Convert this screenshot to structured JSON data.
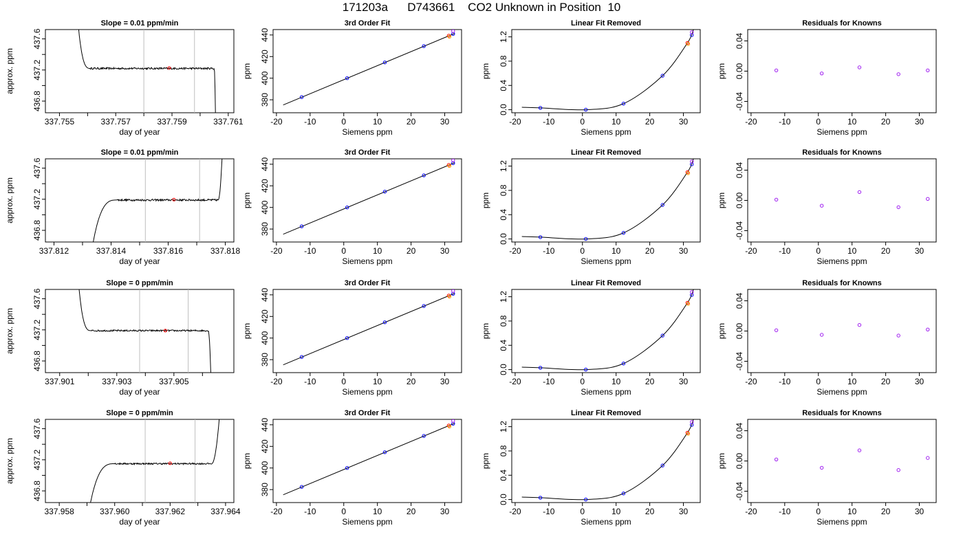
{
  "figure": {
    "title": "171203a      D743661    CO2 Unknown in Position  10"
  },
  "colors": {
    "trace": "#000000",
    "marker_vline": "#bebebe",
    "red_point": "#ff0000",
    "orange_point": "#ffa500",
    "blue_point": "#0000ff",
    "purple_point": "#a020f0"
  },
  "chart_data": [
    {
      "type": "line",
      "row": 0,
      "col": 0,
      "title": "Slope =  0.01  ppm/min",
      "xlabel": "day of year",
      "ylabel": "approx. ppm",
      "xlim": [
        337.7545,
        337.7612
      ],
      "ylim": [
        436.65,
        437.72
      ],
      "xticks": [
        337.755,
        337.756,
        337.757,
        337.758,
        337.759,
        337.76,
        337.761
      ],
      "xticklabels": [
        "337.755",
        "",
        "337.757",
        "",
        "337.759",
        "",
        "337.761"
      ],
      "yticks": [
        436.8,
        437.0,
        437.2,
        437.4,
        437.6
      ],
      "yticklabels": [
        "436.8",
        "",
        "437.2",
        "",
        "437.6"
      ],
      "vlines": [
        337.758,
        337.7598
      ],
      "trace": {
        "start": 337.75565,
        "plateau_start": 337.7561,
        "plateau_end": 337.7605,
        "end": 337.76055,
        "plateau": 437.22,
        "start_value": 437.85,
        "end_value": 436.55,
        "noise": 0.012
      },
      "mean_point": {
        "x": 337.7589,
        "y": 437.225
      }
    },
    {
      "type": "scatter",
      "row": 0,
      "col": 1,
      "title": "3rd Order Fit",
      "xlabel": "Siemens ppm",
      "ylabel": "ppm",
      "xlim": [
        -21,
        35
      ],
      "ylim": [
        368,
        445
      ],
      "xticks": [
        -20,
        -10,
        0,
        10,
        20,
        30
      ],
      "yticks": [
        380,
        400,
        420,
        440
      ],
      "fit_line": {
        "x": [
          -18,
          33
        ],
        "y": [
          375.2,
          441.5
        ]
      },
      "knowns": {
        "x": [
          -12.5,
          1,
          12.2,
          23.8,
          32.5
        ],
        "y": [
          382.5,
          400,
          414.6,
          429.7,
          441
        ]
      },
      "unknown": {
        "x": [
          31.2
        ],
        "y": [
          439.3
        ]
      }
    },
    {
      "type": "scatter",
      "row": 0,
      "col": 2,
      "title": "Linear Fit Removed",
      "xlabel": "Siemens ppm",
      "ylabel": "ppm",
      "xlim": [
        -21,
        35
      ],
      "ylim": [
        -0.05,
        1.32
      ],
      "xticks": [
        -20,
        -10,
        0,
        10,
        20,
        30
      ],
      "yticks": [
        0.0,
        0.4,
        0.8,
        1.2
      ],
      "fit_curve": {
        "x": [
          -18,
          -12.5,
          1,
          12.2,
          23.8,
          31.2,
          33
        ],
        "y": [
          0.04,
          0.03,
          0,
          0.1,
          0.56,
          1.1,
          1.32
        ]
      },
      "knowns": {
        "x": [
          -12.5,
          1,
          12.2,
          23.8,
          32.5
        ],
        "y": [
          0.03,
          0,
          0.1,
          0.56,
          1.23
        ]
      },
      "unknown": {
        "x": [
          31.2
        ],
        "y": [
          1.1
        ]
      }
    },
    {
      "type": "scatter",
      "row": 0,
      "col": 3,
      "title": "Residuals for Knowns",
      "xlabel": "Siemens ppm",
      "ylabel": "ppm",
      "xlim": [
        -21,
        35
      ],
      "ylim": [
        -0.055,
        0.055
      ],
      "xticks": [
        -20,
        -10,
        0,
        10,
        20,
        30
      ],
      "yticks": [
        -0.04,
        0.0,
        0.04
      ],
      "residuals": {
        "x": [
          -12.5,
          1,
          12.2,
          23.8,
          32.5
        ],
        "y": [
          0.001,
          -0.003,
          0.005,
          -0.004,
          0.001
        ]
      }
    },
    {
      "type": "line",
      "row": 1,
      "col": 0,
      "title": "Slope =  0.01  ppm/min",
      "xlabel": "day of year",
      "ylabel": "approx. ppm",
      "xlim": [
        337.8117,
        337.8183
      ],
      "ylim": [
        436.65,
        437.72
      ],
      "xticks": [
        337.812,
        337.813,
        337.814,
        337.815,
        337.816,
        337.817,
        337.818
      ],
      "xticklabels": [
        "337.812",
        "",
        "337.814",
        "",
        "337.816",
        "",
        "337.818"
      ],
      "yticks": [
        436.8,
        437.0,
        437.2,
        437.4,
        437.6
      ],
      "yticklabels": [
        "436.8",
        "",
        "437.2",
        "",
        "437.6"
      ],
      "vlines": [
        337.8152,
        337.8171
      ],
      "trace": {
        "start": 337.81335,
        "plateau_start": 337.8142,
        "plateau_end": 337.81775,
        "end": 337.8179,
        "plateau": 437.19,
        "start_value": 436.6,
        "end_value": 437.85,
        "noise": 0.012
      },
      "mean_point": {
        "x": 337.8162,
        "y": 437.195
      }
    },
    {
      "type": "scatter",
      "row": 1,
      "col": 1,
      "title": "3rd Order Fit",
      "xlabel": "Siemens ppm",
      "ylabel": "ppm",
      "xlim": [
        -21,
        35
      ],
      "ylim": [
        368,
        445
      ],
      "xticks": [
        -20,
        -10,
        0,
        10,
        20,
        30
      ],
      "yticks": [
        380,
        400,
        420,
        440
      ],
      "fit_line": {
        "x": [
          -18,
          33
        ],
        "y": [
          375.2,
          441.5
        ]
      },
      "knowns": {
        "x": [
          -12.5,
          1,
          12.2,
          23.8,
          32.5
        ],
        "y": [
          382.5,
          400,
          414.6,
          429.7,
          441
        ]
      },
      "unknown": {
        "x": [
          31.2
        ],
        "y": [
          439.3
        ]
      }
    },
    {
      "type": "scatter",
      "row": 1,
      "col": 2,
      "title": "Linear Fit Removed",
      "xlabel": "Siemens ppm",
      "ylabel": "ppm",
      "xlim": [
        -21,
        35
      ],
      "ylim": [
        -0.05,
        1.32
      ],
      "xticks": [
        -20,
        -10,
        0,
        10,
        20,
        30
      ],
      "yticks": [
        0.0,
        0.4,
        0.8,
        1.2
      ],
      "fit_curve": {
        "x": [
          -18,
          -12.5,
          1,
          12.2,
          23.8,
          31.2,
          33
        ],
        "y": [
          0.04,
          0.03,
          0,
          0.1,
          0.56,
          1.1,
          1.32
        ]
      },
      "knowns": {
        "x": [
          -12.5,
          1,
          12.2,
          23.8,
          32.5
        ],
        "y": [
          0.03,
          0,
          0.1,
          0.56,
          1.23
        ]
      },
      "unknown": {
        "x": [
          31.2
        ],
        "y": [
          1.1
        ]
      }
    },
    {
      "type": "scatter",
      "row": 1,
      "col": 3,
      "title": "Residuals for Knowns",
      "xlabel": "Siemens ppm",
      "ylabel": "ppm",
      "xlim": [
        -21,
        35
      ],
      "ylim": [
        -0.055,
        0.055
      ],
      "xticks": [
        -20,
        -10,
        0,
        10,
        20,
        30
      ],
      "yticks": [
        -0.04,
        0.0,
        0.04
      ],
      "residuals": {
        "x": [
          -12.5,
          1,
          12.2,
          23.8,
          32.5
        ],
        "y": [
          0.001,
          -0.007,
          0.011,
          -0.009,
          0.002
        ]
      }
    },
    {
      "type": "line",
      "row": 2,
      "col": 0,
      "title": "Slope =  0  ppm/min",
      "xlabel": "day of year",
      "ylabel": "approx. ppm",
      "xlim": [
        337.9005,
        337.9071
      ],
      "ylim": [
        436.65,
        437.72
      ],
      "xticks": [
        337.901,
        337.902,
        337.903,
        337.904,
        337.905,
        337.906
      ],
      "xticklabels": [
        "337.901",
        "",
        "337.903",
        "",
        "337.905",
        ""
      ],
      "yticks": [
        436.8,
        437.0,
        437.2,
        437.4,
        437.6
      ],
      "yticklabels": [
        "436.8",
        "",
        "437.2",
        "",
        "437.6"
      ],
      "vlines": [
        337.9038,
        337.9055
      ],
      "trace": {
        "start": 337.90165,
        "plateau_start": 337.9021,
        "plateau_end": 337.9062,
        "end": 337.9063,
        "plateau": 437.19,
        "start_value": 437.85,
        "end_value": 436.55,
        "noise": 0.01
      },
      "mean_point": {
        "x": 337.9047,
        "y": 437.19
      }
    },
    {
      "type": "scatter",
      "row": 2,
      "col": 1,
      "title": "3rd Order Fit",
      "xlabel": "Siemens ppm",
      "ylabel": "ppm",
      "xlim": [
        -21,
        35
      ],
      "ylim": [
        368,
        445
      ],
      "xticks": [
        -20,
        -10,
        0,
        10,
        20,
        30
      ],
      "yticks": [
        380,
        400,
        420,
        440
      ],
      "fit_line": {
        "x": [
          -18,
          33
        ],
        "y": [
          375.2,
          441.5
        ]
      },
      "knowns": {
        "x": [
          -12.5,
          1,
          12.2,
          23.8,
          32.5
        ],
        "y": [
          382.5,
          400,
          414.6,
          429.7,
          441
        ]
      },
      "unknown": {
        "x": [
          31.2
        ],
        "y": [
          439.3
        ]
      }
    },
    {
      "type": "scatter",
      "row": 2,
      "col": 2,
      "title": "Linear Fit Removed",
      "xlabel": "Siemens ppm",
      "ylabel": "ppm",
      "xlim": [
        -21,
        35
      ],
      "ylim": [
        -0.05,
        1.32
      ],
      "xticks": [
        -20,
        -10,
        0,
        10,
        20,
        30
      ],
      "yticks": [
        0.0,
        0.4,
        0.8,
        1.2
      ],
      "fit_curve": {
        "x": [
          -18,
          -12.5,
          1,
          12.2,
          23.8,
          31.2,
          33
        ],
        "y": [
          0.04,
          0.03,
          0,
          0.1,
          0.56,
          1.1,
          1.32
        ]
      },
      "knowns": {
        "x": [
          -12.5,
          1,
          12.2,
          23.8,
          32.5
        ],
        "y": [
          0.03,
          0,
          0.1,
          0.56,
          1.23
        ]
      },
      "unknown": {
        "x": [
          31.2
        ],
        "y": [
          1.1
        ]
      }
    },
    {
      "type": "scatter",
      "row": 2,
      "col": 3,
      "title": "Residuals for Knowns",
      "xlabel": "Siemens ppm",
      "ylabel": "ppm",
      "xlim": [
        -21,
        35
      ],
      "ylim": [
        -0.055,
        0.055
      ],
      "xticks": [
        -20,
        -10,
        0,
        10,
        20,
        30
      ],
      "yticks": [
        -0.04,
        0.0,
        0.04
      ],
      "residuals": {
        "x": [
          -12.5,
          1,
          12.2,
          23.8,
          32.5
        ],
        "y": [
          0.001,
          -0.005,
          0.008,
          -0.006,
          0.002
        ]
      }
    },
    {
      "type": "line",
      "row": 3,
      "col": 0,
      "title": "Slope =  0  ppm/min",
      "xlabel": "day of year",
      "ylabel": "approx. ppm",
      "xlim": [
        337.9575,
        337.9643
      ],
      "ylim": [
        436.65,
        437.72
      ],
      "xticks": [
        337.958,
        337.959,
        337.96,
        337.961,
        337.962,
        337.963,
        337.964
      ],
      "xticklabels": [
        "337.958",
        "",
        "337.960",
        "",
        "337.962",
        "",
        "337.964"
      ],
      "yticks": [
        436.8,
        437.0,
        437.2,
        437.4,
        437.6
      ],
      "yticklabels": [
        "436.8",
        "",
        "437.2",
        "",
        "437.6"
      ],
      "vlines": [
        337.9611,
        337.9629
      ],
      "trace": {
        "start": 337.9591,
        "plateau_start": 337.96,
        "plateau_end": 337.9635,
        "end": 337.9638,
        "plateau": 437.15,
        "start_value": 436.6,
        "end_value": 437.85,
        "noise": 0.01
      },
      "mean_point": {
        "x": 337.962,
        "y": 437.155
      }
    },
    {
      "type": "scatter",
      "row": 3,
      "col": 1,
      "title": "3rd Order Fit",
      "xlabel": "Siemens ppm",
      "ylabel": "ppm",
      "xlim": [
        -21,
        35
      ],
      "ylim": [
        368,
        445
      ],
      "xticks": [
        -20,
        -10,
        0,
        10,
        20,
        30
      ],
      "yticks": [
        380,
        400,
        420,
        440
      ],
      "fit_line": {
        "x": [
          -18,
          33
        ],
        "y": [
          375.2,
          441.5
        ]
      },
      "knowns": {
        "x": [
          -12.5,
          1,
          12.2,
          23.8,
          32.5
        ],
        "y": [
          382.5,
          400,
          414.6,
          429.7,
          441
        ]
      },
      "unknown": {
        "x": [
          31.2
        ],
        "y": [
          439.3
        ]
      }
    },
    {
      "type": "scatter",
      "row": 3,
      "col": 2,
      "title": "Linear Fit Removed",
      "xlabel": "Siemens ppm",
      "ylabel": "ppm",
      "xlim": [
        -21,
        35
      ],
      "ylim": [
        -0.05,
        1.32
      ],
      "xticks": [
        -20,
        -10,
        0,
        10,
        20,
        30
      ],
      "yticks": [
        0.0,
        0.4,
        0.8,
        1.2
      ],
      "fit_curve": {
        "x": [
          -18,
          -12.5,
          1,
          12.2,
          23.8,
          31.2,
          33
        ],
        "y": [
          0.04,
          0.03,
          0,
          0.1,
          0.56,
          1.1,
          1.32
        ]
      },
      "knowns": {
        "x": [
          -12.5,
          1,
          12.2,
          23.8,
          32.5
        ],
        "y": [
          0.03,
          0,
          0.1,
          0.56,
          1.23
        ]
      },
      "unknown": {
        "x": [
          31.2
        ],
        "y": [
          1.1
        ]
      }
    },
    {
      "type": "scatter",
      "row": 3,
      "col": 3,
      "title": "Residuals for Knowns",
      "xlabel": "Siemens ppm",
      "ylabel": "ppm",
      "xlim": [
        -21,
        35
      ],
      "ylim": [
        -0.055,
        0.055
      ],
      "xticks": [
        -20,
        -10,
        0,
        10,
        20,
        30
      ],
      "yticks": [
        -0.04,
        0.0,
        0.04
      ],
      "residuals": {
        "x": [
          -12.5,
          1,
          12.2,
          23.8,
          32.5
        ],
        "y": [
          0.002,
          -0.009,
          0.014,
          -0.012,
          0.004
        ]
      }
    }
  ]
}
